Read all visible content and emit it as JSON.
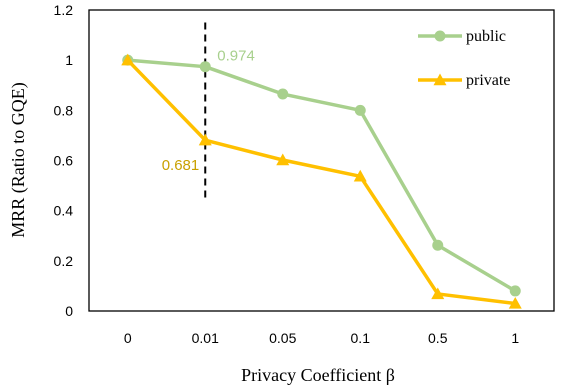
{
  "chart_data": {
    "type": "line",
    "categories": [
      "0",
      "0.01",
      "0.05",
      "0.1",
      "0.5",
      "1"
    ],
    "series": [
      {
        "name": "public",
        "values": [
          1.0,
          0.974,
          0.865,
          0.8,
          0.262,
          0.08
        ],
        "color": "#a8d08d",
        "marker": "circle"
      },
      {
        "name": "private",
        "values": [
          1.0,
          0.681,
          0.602,
          0.537,
          0.068,
          0.03
        ],
        "color": "#ffc000",
        "marker": "triangle"
      }
    ],
    "xlabel": "Privacy Coefficient β",
    "ylabel": "MRR (Ratio to GQE)",
    "ylim": [
      0,
      1.2
    ],
    "yticks": [
      0,
      0.2,
      0.4,
      0.6,
      0.8,
      1,
      1.2
    ],
    "legend_position": "top-right",
    "grid": false,
    "annotations": [
      {
        "text": "0.974",
        "category": "0.01",
        "series": "public",
        "color": "#a8d08d"
      },
      {
        "text": "0.681",
        "category": "0.01",
        "series": "private",
        "color": "#c9a000"
      }
    ],
    "reference_line": {
      "category": "0.01",
      "from": 0.45,
      "to": 1.15,
      "style": "dashed"
    }
  }
}
